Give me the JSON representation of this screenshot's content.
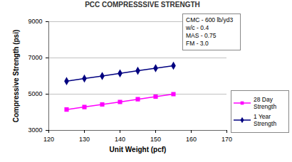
{
  "chart_data": {
    "type": "line",
    "title": "PCC COMPRESSSIVE STRENGTH",
    "x_label": "Unit Weight (pcf)",
    "y_label": "Compressive Strength (psi)",
    "x": [
      125,
      130,
      135,
      140,
      145,
      150,
      155
    ],
    "series": [
      {
        "name": "28 Day Strength",
        "color": "#ff00ff",
        "marker": "square",
        "values": [
          4150,
          4290,
          4430,
          4570,
          4720,
          4860,
          5000
        ]
      },
      {
        "name": "1 Year Strength",
        "color": "#000080",
        "marker": "diamond",
        "values": [
          5720,
          5860,
          6000,
          6150,
          6290,
          6430,
          6570
        ]
      }
    ],
    "xlim": [
      120,
      170
    ],
    "xticks": [
      120,
      130,
      140,
      150,
      160,
      170
    ],
    "ylim": [
      3000,
      9000
    ],
    "yticks": [
      3000,
      5000,
      7000,
      9000
    ],
    "grid": true,
    "legend": "right",
    "annotations": [
      "CMC - 600 lb/yd3",
      "w/c - 0.4",
      "MAS - 0.75",
      "FM - 3.0"
    ]
  }
}
